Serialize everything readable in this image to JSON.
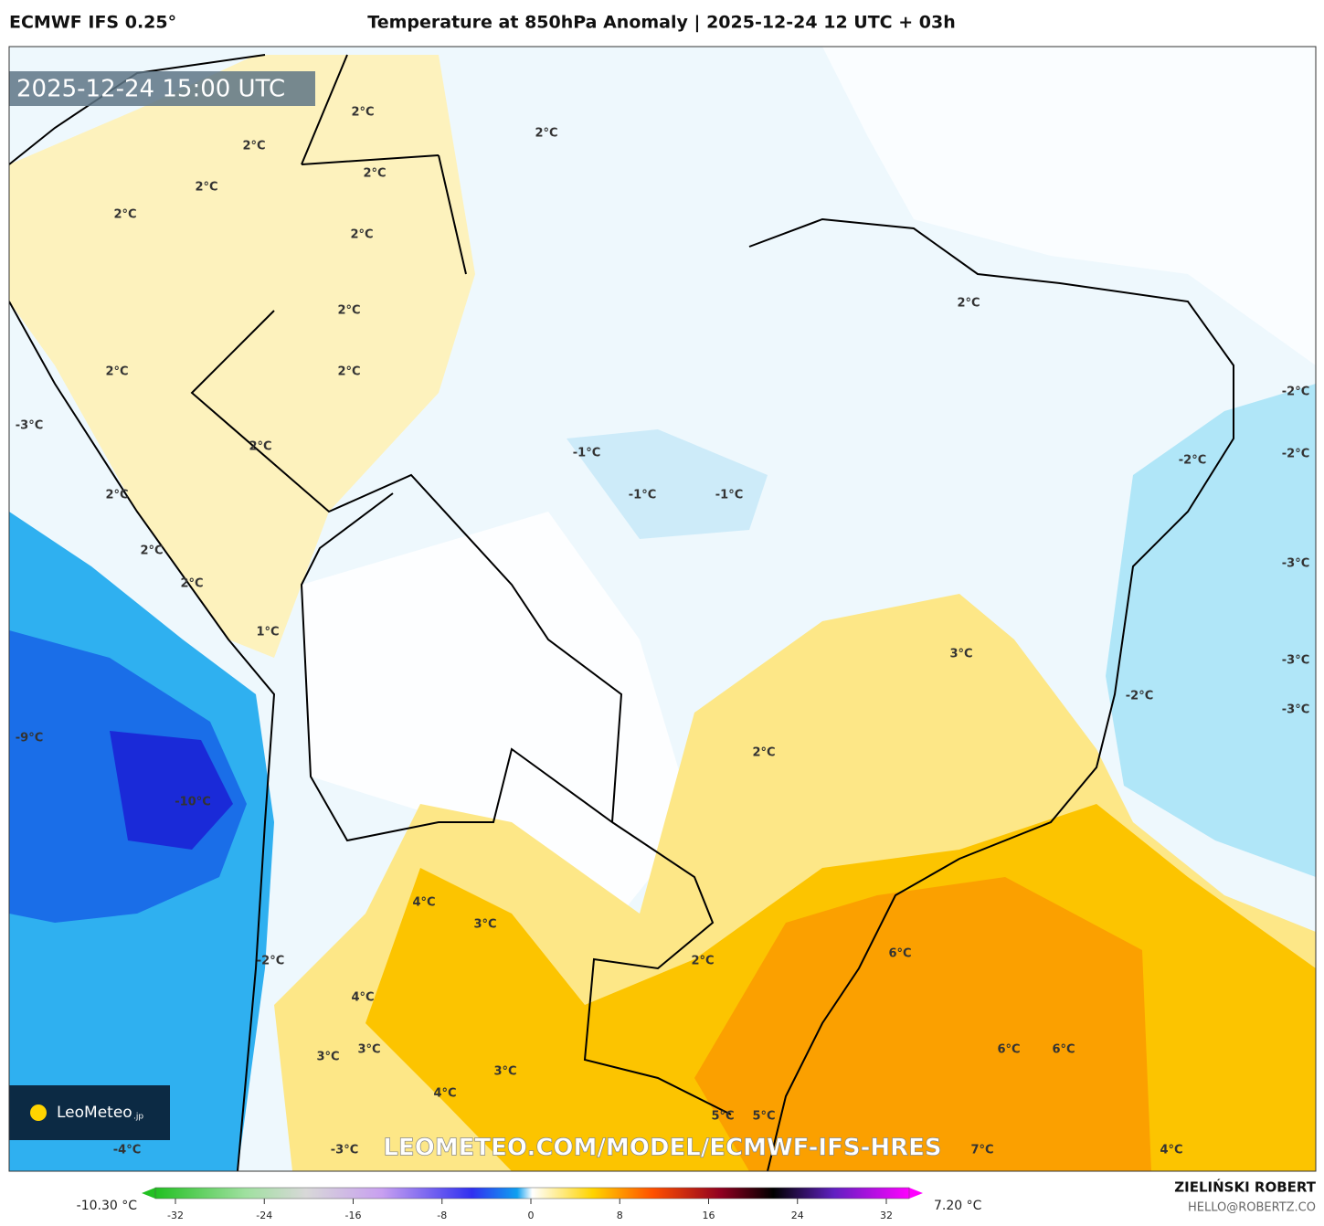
{
  "header": {
    "model": "ECMWF IFS 0.25°",
    "title": "Temperature at 850hPa Anomaly | 2025-12-24 12 UTC + 03h"
  },
  "map": {
    "timestamp": "2025-12-24 15:00 UTC",
    "watermark": "LEOMETEO.COM/MODEL/ECMWF-IFS-HRES",
    "logo": {
      "name": "LeoMeteo",
      "suffix": ".jp"
    },
    "contour_labels": [
      "2°C",
      "2°C",
      "2°C",
      "2°C",
      "2°C",
      "2°C",
      "2°C",
      "2°C",
      "2°C",
      "2°C",
      "2°C",
      "2°C",
      "2°C",
      "2°C",
      "2°C",
      "1°C",
      "-1°C",
      "-1°C",
      "-1°C",
      "-2°C",
      "-2°C",
      "-2°C",
      "-3°C",
      "-3°C",
      "-3°C",
      "-2°C",
      "3°C",
      "2°C",
      "-3°C",
      "-9°C",
      "-10°C",
      "4°C",
      "3°C",
      "-2°C",
      "2°C",
      "6°C",
      "4°C",
      "3°C",
      "3°C",
      "3°C",
      "6°C",
      "6°C",
      "4°C",
      "5°C",
      "5°C",
      "-4°C",
      "-3°C",
      "7°C",
      "4°C"
    ]
  },
  "colorbar": {
    "min_label": "-10.30 °C",
    "max_label": "7.20 °C",
    "ticks": [
      -32,
      -24,
      -16,
      -8,
      0,
      8,
      16,
      24,
      32
    ]
  },
  "footer": {
    "author": "ZIELIŃSKI ROBERT",
    "email": "HELLO@ROBERTZ.CO"
  }
}
